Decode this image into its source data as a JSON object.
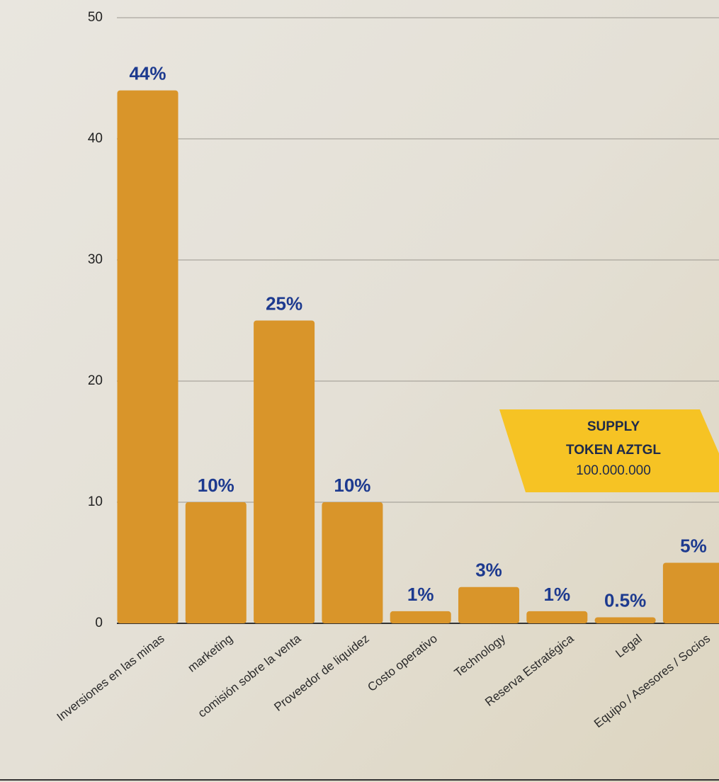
{
  "chart_data": {
    "type": "bar",
    "categories": [
      "Inversiones en las minas",
      "marketing",
      "comisión sobre la venta",
      "Proveedor de liquidez",
      "Costo operativo",
      "Technology",
      "Reserva Estratégica",
      "Legal",
      "Equipo / Asesores / Socios"
    ],
    "values": [
      44,
      10,
      25,
      10,
      1,
      3,
      1,
      0.5,
      5
    ],
    "value_labels": [
      "44%",
      "10%",
      "25%",
      "10%",
      "1%",
      "3%",
      "1%",
      "0.5%",
      "5%"
    ],
    "color": "#d9952a",
    "ylim": [
      0,
      50
    ],
    "yticks": [
      0,
      10,
      20,
      30,
      40,
      50
    ],
    "grid": true,
    "annotations": [
      "SUPPLY",
      "TOKEN AZTGL",
      "100.000.000"
    ]
  }
}
